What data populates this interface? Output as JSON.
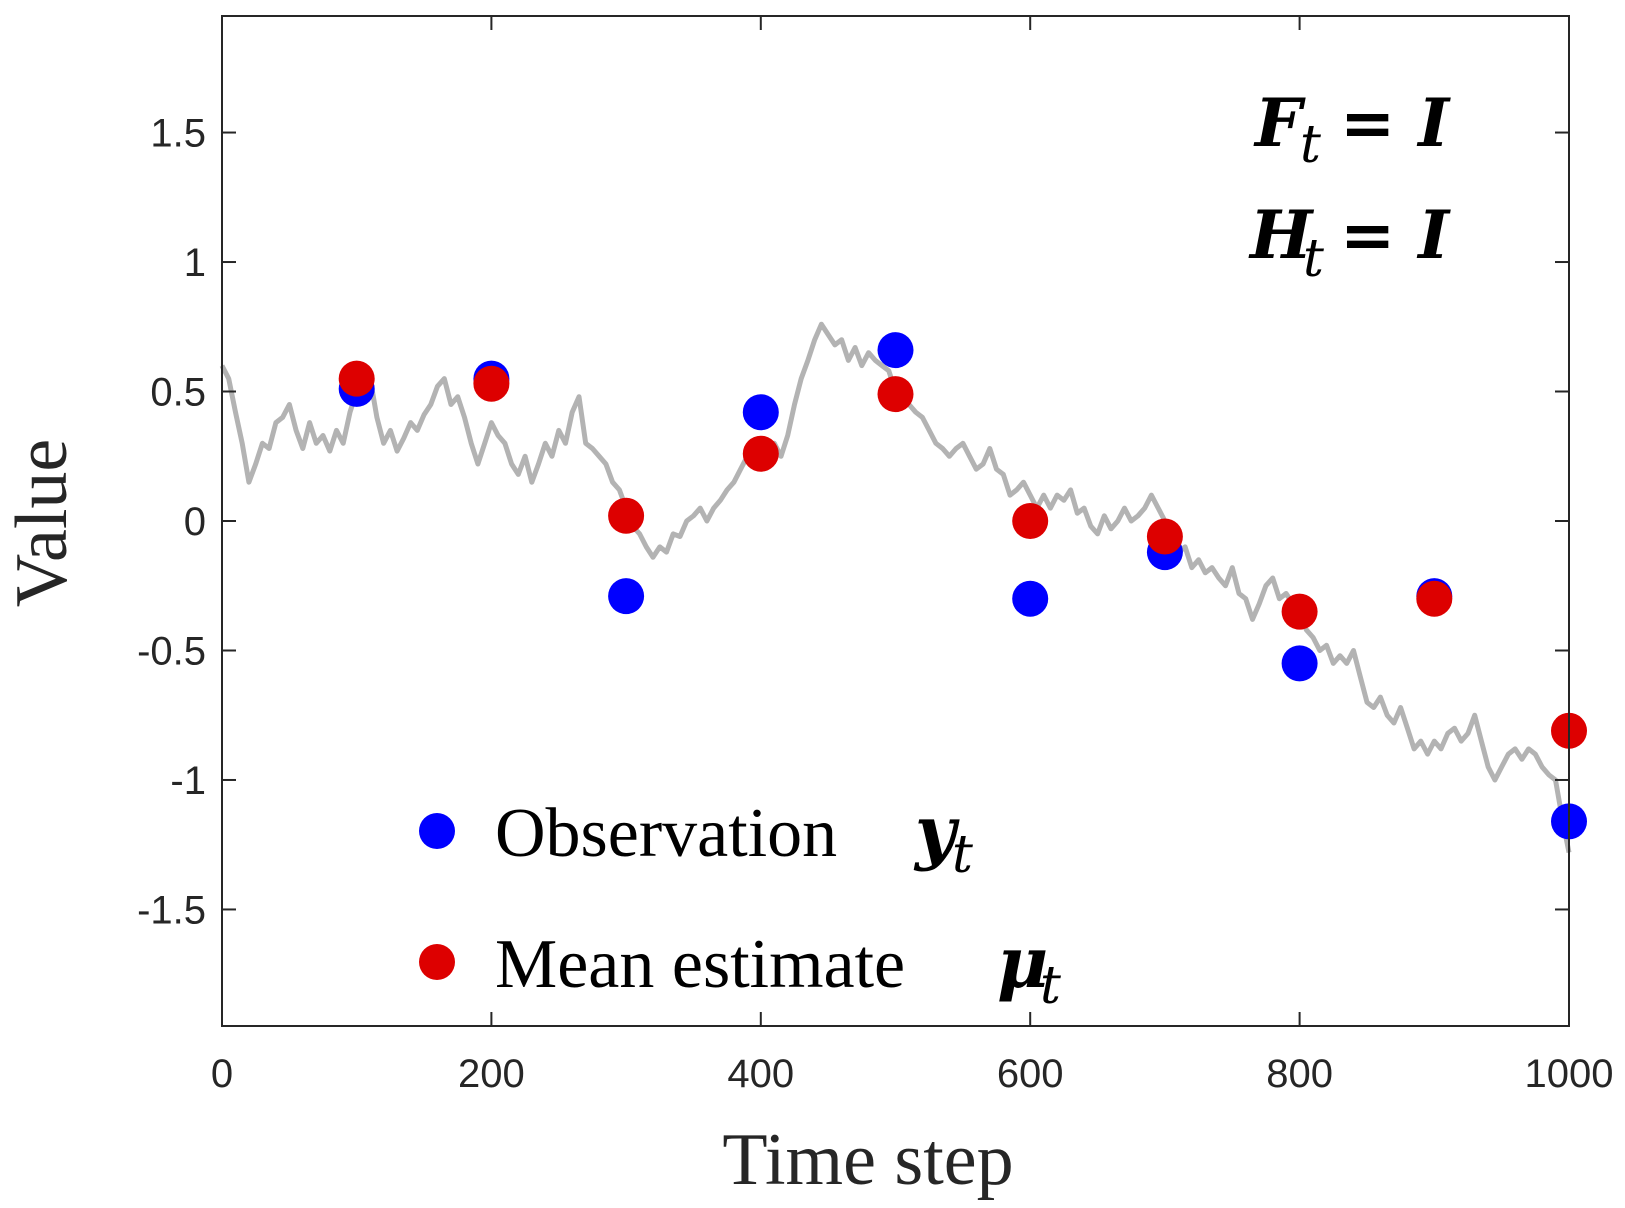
{
  "chart_data": {
    "type": "scatter",
    "xlabel": "Time step",
    "ylabel": "Value",
    "xlim": [
      0,
      1000
    ],
    "ylim": [
      -1.95,
      1.95
    ],
    "x_ticks": [
      0,
      200,
      400,
      600,
      800,
      1000
    ],
    "x_tick_labels": [
      "0",
      "200",
      "400",
      "600",
      "800",
      "1000"
    ],
    "y_ticks": [
      1.5,
      1,
      0.5,
      0,
      -0.5,
      -1,
      -1.5
    ],
    "y_tick_labels": [
      "1.5",
      "1",
      "0.5",
      "0",
      "-0.5",
      "-1",
      "-1.5"
    ],
    "grid": false,
    "legend_position": "bottom-left",
    "annotations": [
      {
        "symbol": "F",
        "subscript": "t",
        "rest": "= I"
      },
      {
        "symbol": "H",
        "subscript": "t",
        "rest": "= I"
      }
    ],
    "series": [
      {
        "name": "Observation",
        "name_symbol": "y",
        "name_subscript": "t",
        "kind": "points",
        "color": "#0000ff",
        "points": [
          [
            100,
            0.51
          ],
          [
            200,
            0.55
          ],
          [
            300,
            -0.29
          ],
          [
            400,
            0.42
          ],
          [
            500,
            0.66
          ],
          [
            600,
            -0.3
          ],
          [
            700,
            -0.12
          ],
          [
            800,
            -0.55
          ],
          [
            900,
            -0.29
          ],
          [
            1000,
            -1.16
          ]
        ]
      },
      {
        "name": "Mean estimate",
        "name_symbol": "μ",
        "name_subscript": "t",
        "kind": "points",
        "color": "#dd0000",
        "points": [
          [
            100,
            0.55
          ],
          [
            200,
            0.53
          ],
          [
            300,
            0.02
          ],
          [
            400,
            0.26
          ],
          [
            500,
            0.49
          ],
          [
            600,
            0.0
          ],
          [
            700,
            -0.06
          ],
          [
            800,
            -0.35
          ],
          [
            900,
            -0.3
          ],
          [
            1000,
            -0.81
          ]
        ]
      },
      {
        "kind": "line",
        "color": "#b3b3b3",
        "points": [
          [
            0,
            0.6
          ],
          [
            5,
            0.55
          ],
          [
            10,
            0.42
          ],
          [
            15,
            0.3
          ],
          [
            20,
            0.15
          ],
          [
            25,
            0.22
          ],
          [
            30,
            0.3
          ],
          [
            35,
            0.28
          ],
          [
            40,
            0.38
          ],
          [
            45,
            0.4
          ],
          [
            50,
            0.45
          ],
          [
            55,
            0.35
          ],
          [
            60,
            0.28
          ],
          [
            65,
            0.38
          ],
          [
            70,
            0.3
          ],
          [
            75,
            0.33
          ],
          [
            80,
            0.27
          ],
          [
            85,
            0.35
          ],
          [
            90,
            0.3
          ],
          [
            95,
            0.42
          ],
          [
            100,
            0.5
          ],
          [
            105,
            0.52
          ],
          [
            110,
            0.55
          ],
          [
            115,
            0.4
          ],
          [
            120,
            0.3
          ],
          [
            125,
            0.35
          ],
          [
            130,
            0.27
          ],
          [
            135,
            0.32
          ],
          [
            140,
            0.38
          ],
          [
            145,
            0.35
          ],
          [
            150,
            0.41
          ],
          [
            155,
            0.45
          ],
          [
            160,
            0.52
          ],
          [
            165,
            0.55
          ],
          [
            170,
            0.45
          ],
          [
            175,
            0.48
          ],
          [
            180,
            0.4
          ],
          [
            185,
            0.3
          ],
          [
            190,
            0.22
          ],
          [
            195,
            0.3
          ],
          [
            200,
            0.38
          ],
          [
            205,
            0.33
          ],
          [
            210,
            0.3
          ],
          [
            215,
            0.22
          ],
          [
            220,
            0.18
          ],
          [
            225,
            0.25
          ],
          [
            230,
            0.15
          ],
          [
            235,
            0.22
          ],
          [
            240,
            0.3
          ],
          [
            245,
            0.25
          ],
          [
            250,
            0.35
          ],
          [
            255,
            0.3
          ],
          [
            260,
            0.42
          ],
          [
            265,
            0.48
          ],
          [
            270,
            0.3
          ],
          [
            275,
            0.28
          ],
          [
            280,
            0.25
          ],
          [
            285,
            0.22
          ],
          [
            290,
            0.15
          ],
          [
            295,
            0.12
          ],
          [
            300,
            0.05
          ],
          [
            305,
            -0.02
          ],
          [
            310,
            -0.05
          ],
          [
            315,
            -0.1
          ],
          [
            320,
            -0.14
          ],
          [
            325,
            -0.1
          ],
          [
            330,
            -0.12
          ],
          [
            335,
            -0.05
          ],
          [
            340,
            -0.06
          ],
          [
            345,
            0.0
          ],
          [
            350,
            0.02
          ],
          [
            355,
            0.05
          ],
          [
            360,
            0.0
          ],
          [
            365,
            0.05
          ],
          [
            370,
            0.08
          ],
          [
            375,
            0.12
          ],
          [
            380,
            0.15
          ],
          [
            385,
            0.2
          ],
          [
            390,
            0.25
          ],
          [
            395,
            0.3
          ],
          [
            400,
            0.28
          ],
          [
            405,
            0.25
          ],
          [
            410,
            0.3
          ],
          [
            415,
            0.25
          ],
          [
            420,
            0.33
          ],
          [
            425,
            0.45
          ],
          [
            430,
            0.55
          ],
          [
            435,
            0.62
          ],
          [
            440,
            0.7
          ],
          [
            445,
            0.76
          ],
          [
            450,
            0.72
          ],
          [
            455,
            0.68
          ],
          [
            460,
            0.7
          ],
          [
            465,
            0.62
          ],
          [
            470,
            0.67
          ],
          [
            475,
            0.6
          ],
          [
            480,
            0.65
          ],
          [
            485,
            0.62
          ],
          [
            490,
            0.6
          ],
          [
            495,
            0.58
          ],
          [
            500,
            0.5
          ],
          [
            505,
            0.48
          ],
          [
            510,
            0.45
          ],
          [
            515,
            0.42
          ],
          [
            520,
            0.4
          ],
          [
            525,
            0.35
          ],
          [
            530,
            0.3
          ],
          [
            535,
            0.28
          ],
          [
            540,
            0.25
          ],
          [
            545,
            0.28
          ],
          [
            550,
            0.3
          ],
          [
            555,
            0.25
          ],
          [
            560,
            0.2
          ],
          [
            565,
            0.22
          ],
          [
            570,
            0.28
          ],
          [
            575,
            0.2
          ],
          [
            580,
            0.18
          ],
          [
            585,
            0.1
          ],
          [
            590,
            0.12
          ],
          [
            595,
            0.15
          ],
          [
            600,
            0.1
          ],
          [
            605,
            0.05
          ],
          [
            610,
            0.1
          ],
          [
            615,
            0.05
          ],
          [
            620,
            0.1
          ],
          [
            625,
            0.08
          ],
          [
            630,
            0.12
          ],
          [
            635,
            0.03
          ],
          [
            640,
            0.05
          ],
          [
            645,
            -0.02
          ],
          [
            650,
            -0.05
          ],
          [
            655,
            0.02
          ],
          [
            660,
            -0.03
          ],
          [
            665,
            0.0
          ],
          [
            670,
            0.05
          ],
          [
            675,
            0.0
          ],
          [
            680,
            0.02
          ],
          [
            685,
            0.05
          ],
          [
            690,
            0.1
          ],
          [
            695,
            0.05
          ],
          [
            700,
            0.0
          ],
          [
            705,
            -0.08
          ],
          [
            710,
            -0.12
          ],
          [
            715,
            -0.1
          ],
          [
            720,
            -0.18
          ],
          [
            725,
            -0.15
          ],
          [
            730,
            -0.2
          ],
          [
            735,
            -0.18
          ],
          [
            740,
            -0.22
          ],
          [
            745,
            -0.25
          ],
          [
            750,
            -0.18
          ],
          [
            755,
            -0.28
          ],
          [
            760,
            -0.3
          ],
          [
            765,
            -0.38
          ],
          [
            770,
            -0.32
          ],
          [
            775,
            -0.25
          ],
          [
            780,
            -0.22
          ],
          [
            785,
            -0.3
          ],
          [
            790,
            -0.28
          ],
          [
            795,
            -0.32
          ],
          [
            800,
            -0.35
          ],
          [
            805,
            -0.42
          ],
          [
            810,
            -0.45
          ],
          [
            815,
            -0.5
          ],
          [
            820,
            -0.48
          ],
          [
            825,
            -0.55
          ],
          [
            830,
            -0.52
          ],
          [
            835,
            -0.55
          ],
          [
            840,
            -0.5
          ],
          [
            845,
            -0.6
          ],
          [
            850,
            -0.7
          ],
          [
            855,
            -0.72
          ],
          [
            860,
            -0.68
          ],
          [
            865,
            -0.75
          ],
          [
            870,
            -0.78
          ],
          [
            875,
            -0.72
          ],
          [
            880,
            -0.8
          ],
          [
            885,
            -0.88
          ],
          [
            890,
            -0.85
          ],
          [
            895,
            -0.9
          ],
          [
            900,
            -0.85
          ],
          [
            905,
            -0.88
          ],
          [
            910,
            -0.82
          ],
          [
            915,
            -0.8
          ],
          [
            920,
            -0.85
          ],
          [
            925,
            -0.82
          ],
          [
            930,
            -0.75
          ],
          [
            935,
            -0.85
          ],
          [
            940,
            -0.95
          ],
          [
            945,
            -1.0
          ],
          [
            950,
            -0.95
          ],
          [
            955,
            -0.9
          ],
          [
            960,
            -0.88
          ],
          [
            965,
            -0.92
          ],
          [
            970,
            -0.88
          ],
          [
            975,
            -0.9
          ],
          [
            980,
            -0.95
          ],
          [
            985,
            -0.98
          ],
          [
            990,
            -1.0
          ],
          [
            995,
            -1.15
          ],
          [
            1000,
            -1.28
          ]
        ]
      }
    ]
  }
}
